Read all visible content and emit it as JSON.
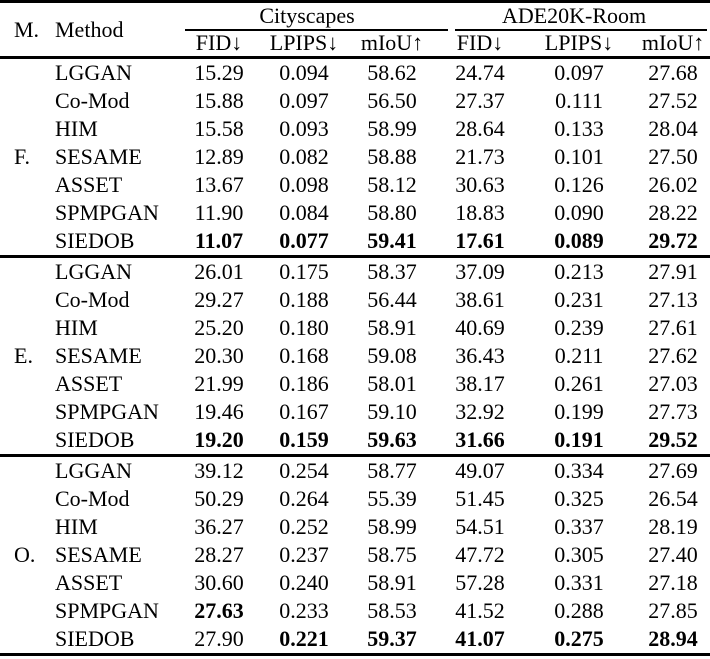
{
  "colors": {
    "background": "#ffffff",
    "text": "#000000",
    "rule": "#000000"
  },
  "table": {
    "corner_headers": {
      "mode": "M.",
      "method": "Method"
    },
    "dataset_groups": [
      {
        "label": "Cityscapes"
      },
      {
        "label": "ADE20K-Room"
      }
    ],
    "metric_headers": [
      "FID↓",
      "LPIPS↓",
      "mIoU↑",
      "FID↓",
      "LPIPS↓",
      "mIoU↑"
    ],
    "groups": [
      {
        "mode": "F.",
        "rows": [
          {
            "method": "LGGAN",
            "values": [
              "15.29",
              "0.094",
              "58.62",
              "24.74",
              "0.097",
              "27.68"
            ]
          },
          {
            "method": "Co-Mod",
            "values": [
              "15.88",
              "0.097",
              "56.50",
              "27.37",
              "0.111",
              "27.52"
            ]
          },
          {
            "method": "HIM",
            "values": [
              "15.58",
              "0.093",
              "58.99",
              "28.64",
              "0.133",
              "28.04"
            ]
          },
          {
            "method": "SESAME",
            "values": [
              "12.89",
              "0.082",
              "58.88",
              "21.73",
              "0.101",
              "27.50"
            ]
          },
          {
            "method": "ASSET",
            "values": [
              "13.67",
              "0.098",
              "58.12",
              "30.63",
              "0.126",
              "26.02"
            ]
          },
          {
            "method": "SPMPGAN",
            "values": [
              "11.90",
              "0.084",
              "58.80",
              "18.83",
              "0.090",
              "28.22"
            ]
          },
          {
            "method": "SIEDOB",
            "values": [
              "11.07",
              "0.077",
              "59.41",
              "17.61",
              "0.089",
              "29.72"
            ],
            "bold": [
              true,
              true,
              true,
              true,
              true,
              true
            ]
          }
        ]
      },
      {
        "mode": "E.",
        "rows": [
          {
            "method": "LGGAN",
            "values": [
              "26.01",
              "0.175",
              "58.37",
              "37.09",
              "0.213",
              "27.91"
            ]
          },
          {
            "method": "Co-Mod",
            "values": [
              "29.27",
              "0.188",
              "56.44",
              "38.61",
              "0.231",
              "27.13"
            ]
          },
          {
            "method": "HIM",
            "values": [
              "25.20",
              "0.180",
              "58.91",
              "40.69",
              "0.239",
              "27.61"
            ]
          },
          {
            "method": "SESAME",
            "values": [
              "20.30",
              "0.168",
              "59.08",
              "36.43",
              "0.211",
              "27.62"
            ]
          },
          {
            "method": "ASSET",
            "values": [
              "21.99",
              "0.186",
              "58.01",
              "38.17",
              "0.261",
              "27.03"
            ]
          },
          {
            "method": "SPMPGAN",
            "values": [
              "19.46",
              "0.167",
              "59.10",
              "32.92",
              "0.199",
              "27.73"
            ]
          },
          {
            "method": "SIEDOB",
            "values": [
              "19.20",
              "0.159",
              "59.63",
              "31.66",
              "0.191",
              "29.52"
            ],
            "bold": [
              true,
              true,
              true,
              true,
              true,
              true
            ]
          }
        ]
      },
      {
        "mode": "O.",
        "rows": [
          {
            "method": "LGGAN",
            "values": [
              "39.12",
              "0.254",
              "58.77",
              "49.07",
              "0.334",
              "27.69"
            ]
          },
          {
            "method": "Co-Mod",
            "values": [
              "50.29",
              "0.264",
              "55.39",
              "51.45",
              "0.325",
              "26.54"
            ]
          },
          {
            "method": "HIM",
            "values": [
              "36.27",
              "0.252",
              "58.99",
              "54.51",
              "0.337",
              "28.19"
            ]
          },
          {
            "method": "SESAME",
            "values": [
              "28.27",
              "0.237",
              "58.75",
              "47.72",
              "0.305",
              "27.40"
            ]
          },
          {
            "method": "ASSET",
            "values": [
              "30.60",
              "0.240",
              "58.91",
              "57.28",
              "0.331",
              "27.18"
            ]
          },
          {
            "method": "SPMPGAN",
            "values": [
              "27.63",
              "0.233",
              "58.53",
              "41.52",
              "0.288",
              "27.85"
            ],
            "bold": [
              true,
              false,
              false,
              false,
              false,
              false
            ]
          },
          {
            "method": "SIEDOB",
            "values": [
              "27.90",
              "0.221",
              "59.37",
              "41.07",
              "0.275",
              "28.94"
            ],
            "bold": [
              false,
              true,
              true,
              true,
              true,
              true
            ]
          }
        ]
      }
    ]
  }
}
